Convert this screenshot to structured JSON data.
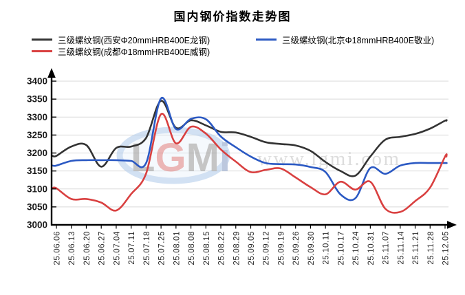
{
  "title": "国内钢价指数走势图",
  "legend": {
    "items": [
      {
        "label": "三级螺纹钢(西安Φ20mmHRB400E龙钢)",
        "color": "#333333"
      },
      {
        "label": "三级螺纹钢(北京Φ18mmHRB400E敬业)",
        "color": "#2B59C3"
      },
      {
        "label": "三级螺纹钢(成都Φ18mmHRB400E威钢)",
        "color": "#D94040"
      }
    ]
  },
  "watermark": {
    "logo_letters": [
      {
        "char": "L",
        "color": "#a3a3a3"
      },
      {
        "char": "G",
        "color": "#e08a8a"
      },
      {
        "char": "M",
        "color": "#a3a3a3"
      },
      {
        "char": "i",
        "color": "#94a8ca"
      }
    ],
    "url": "www.lgmi.com",
    "ellipse_color": "#b7cfec"
  },
  "chart_data": {
    "type": "line",
    "title": "国内钢价指数走势图",
    "categories": [
      "25.06.06",
      "25.06.13",
      "25.06.20",
      "25.06.27",
      "25.07.04",
      "25.07.11",
      "25.07.18",
      "25.07.25",
      "25.08.01",
      "25.08.08",
      "25.08.15",
      "25.08.22",
      "25.08.29",
      "25.09.05",
      "25.09.12",
      "25.09.19",
      "25.09.26",
      "25.09.30",
      "25.10.11",
      "25.10.17",
      "25.10.24",
      "25.10.31",
      "25.11.07",
      "25.11.14",
      "25.11.21",
      "25.11.28",
      "25.12.05"
    ],
    "series": [
      {
        "name": "三级螺纹钢(西安Φ20mmHRB400E龙钢)",
        "color": "#333333",
        "values": [
          3192,
          3218,
          3222,
          3162,
          3214,
          3218,
          3242,
          3345,
          3270,
          3291,
          3277,
          3259,
          3257,
          3245,
          3230,
          3225,
          3221,
          3206,
          3175,
          3150,
          3137,
          3190,
          3237,
          3245,
          3253,
          3268,
          3290
        ]
      },
      {
        "name": "三级螺纹钢(北京Φ18mmHRB400E敬业)",
        "color": "#2B59C3",
        "values": [
          3165,
          3178,
          3180,
          3180,
          3180,
          3178,
          3172,
          3352,
          3267,
          3295,
          3294,
          3246,
          3216,
          3190,
          3172,
          3169,
          3168,
          3161,
          3147,
          3085,
          3074,
          3158,
          3142,
          3165,
          3172,
          3172,
          3172
        ]
      },
      {
        "name": "三级螺纹钢(成都Φ18mmHRB400E威钢)",
        "color": "#D94040",
        "values": [
          3102,
          3072,
          3072,
          3062,
          3040,
          3086,
          3143,
          3308,
          3227,
          3273,
          3254,
          3210,
          3176,
          3147,
          3153,
          3157,
          3132,
          3105,
          3085,
          3120,
          3098,
          3120,
          3045,
          3036,
          3066,
          3104,
          3190
        ]
      }
    ],
    "ylim": [
      3000,
      3400
    ],
    "ytick_step": 50,
    "yticks": [
      3000,
      3050,
      3100,
      3150,
      3200,
      3250,
      3300,
      3350,
      3400
    ],
    "grid": "horizontal-only",
    "legend_position": "top",
    "x_label_rotation": -90
  }
}
